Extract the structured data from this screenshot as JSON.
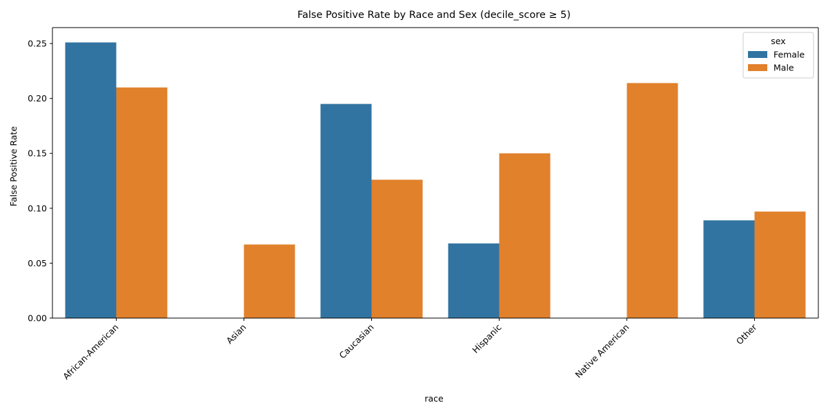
{
  "chart_data": {
    "type": "bar",
    "title": "False Positive Rate by Race and Sex (decile_score ≥ 5)",
    "xlabel": "race",
    "ylabel": "False Positive Rate",
    "categories": [
      "African-American",
      "Asian",
      "Caucasian",
      "Hispanic",
      "Native American",
      "Other"
    ],
    "series": [
      {
        "name": "Female",
        "color": "#3274a1",
        "values": [
          0.251,
          null,
          0.195,
          0.068,
          null,
          0.089
        ]
      },
      {
        "name": "Male",
        "color": "#e1812c",
        "values": [
          0.21,
          0.067,
          0.126,
          0.15,
          0.214,
          0.097
        ]
      }
    ],
    "ylim": [
      0,
      0.2645
    ],
    "yticks": [
      0.0,
      0.05,
      0.1,
      0.15,
      0.2,
      0.25
    ],
    "ytick_labels": [
      "0.00",
      "0.05",
      "0.10",
      "0.15",
      "0.20",
      "0.25"
    ],
    "grid": false,
    "legend": {
      "title": "sex",
      "position": "top-right"
    }
  }
}
